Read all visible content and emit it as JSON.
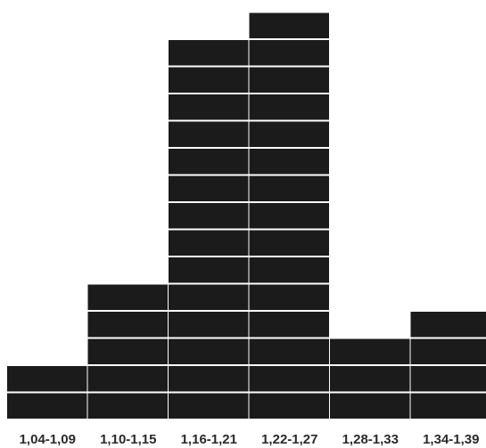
{
  "chart_data": {
    "type": "bar",
    "categories": [
      "1,04-1,09",
      "1,10-1,15",
      "1,16-1,21",
      "1,22-1,27",
      "1,28-1,33",
      "1,34-1,39"
    ],
    "values": [
      2,
      5,
      14,
      15,
      3,
      4
    ],
    "title": "",
    "xlabel": "",
    "ylabel": "",
    "ylim": [
      0,
      15
    ],
    "grid": false,
    "legend": "none",
    "style": "stacked unit blocks per count"
  },
  "colors": {
    "block": "#1b1b1b",
    "separator": "#ffffff",
    "background": "#ffffff",
    "label": "#2a2a2a"
  }
}
